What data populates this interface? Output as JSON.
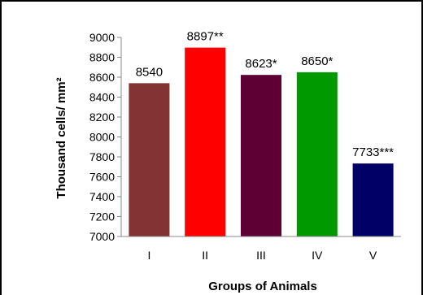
{
  "chart_data": {
    "type": "bar",
    "title": "",
    "xlabel": "Groups of Animals",
    "ylabel": "Thousand cells/ mm²",
    "categories": [
      "I",
      "II",
      "III",
      "IV",
      "V"
    ],
    "values": [
      8540,
      8897,
      8623,
      8650,
      7733
    ],
    "data_labels": [
      "8540",
      "8897**",
      "8623*",
      "8650*",
      "7733***"
    ],
    "colors": [
      "#833333",
      "#FF0000",
      "#5E0033",
      "#009900",
      "#000066"
    ],
    "ylim": [
      7000,
      9000
    ],
    "yticks": [
      7000,
      7200,
      7400,
      7600,
      7800,
      8000,
      8200,
      8400,
      8600,
      8800,
      9000
    ],
    "grid": false,
    "legend": "none"
  }
}
